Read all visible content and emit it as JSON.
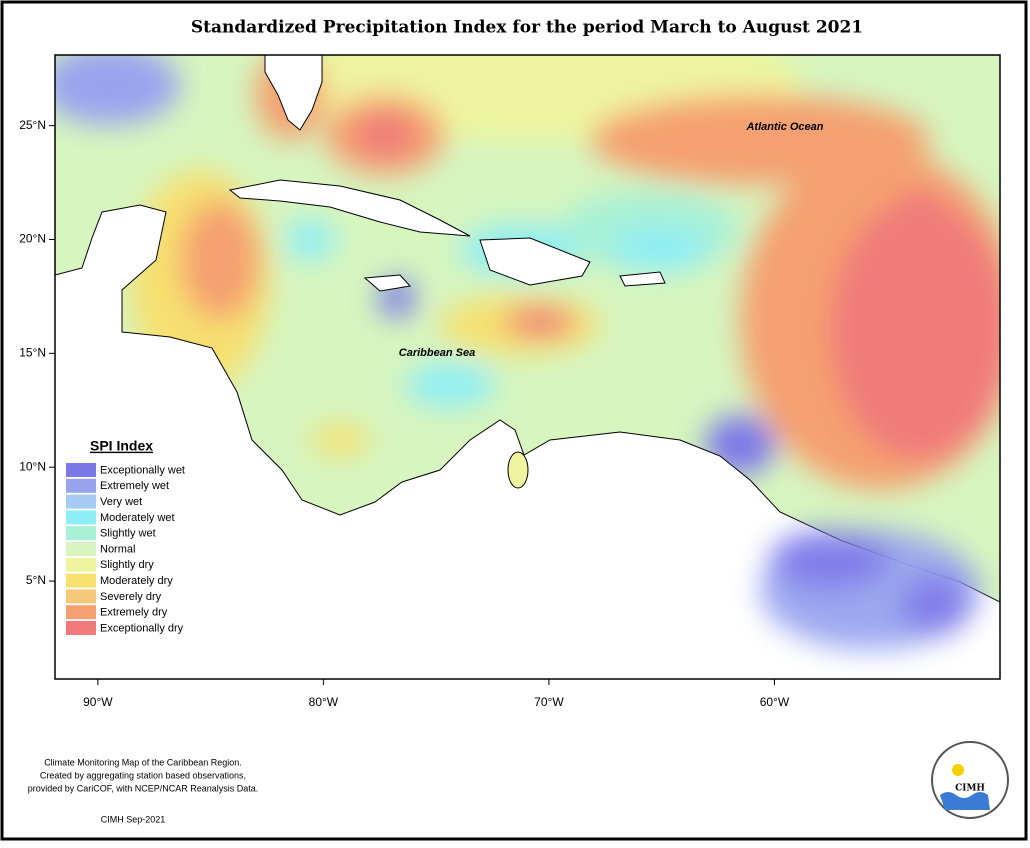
{
  "title": "Standardized Precipitation Index for the period March to August 2021",
  "map": {
    "xlim": [
      -91.9,
      -50
    ],
    "ylim": [
      0.7,
      28.1
    ],
    "xticks": [
      {
        "value": -90,
        "label": "90°W"
      },
      {
        "value": -80,
        "label": "80°W"
      },
      {
        "value": -70,
        "label": "70°W"
      },
      {
        "value": -60,
        "label": "60°W"
      }
    ],
    "yticks": [
      {
        "value": 5,
        "label": "5°N"
      },
      {
        "value": 10,
        "label": "10°N"
      },
      {
        "value": 15,
        "label": "15°N"
      },
      {
        "value": 20,
        "label": "20°N"
      },
      {
        "value": 25,
        "label": "25°N"
      }
    ],
    "labels": [
      "Atlantic Ocean",
      "Caribbean Sea"
    ]
  },
  "legend": {
    "title": "SPI Index",
    "items": [
      {
        "label": "Exceptionally wet",
        "color": "#7b78e8"
      },
      {
        "label": "Extremely wet",
        "color": "#98a4ef"
      },
      {
        "label": "Very wet",
        "color": "#a6cbf4"
      },
      {
        "label": "Moderately wet",
        "color": "#8eeef6"
      },
      {
        "label": "Slightly wet",
        "color": "#a8f0d6"
      },
      {
        "label": "Normal",
        "color": "#d6f5bf"
      },
      {
        "label": "Slightly dry",
        "color": "#eef59e"
      },
      {
        "label": "Moderately dry",
        "color": "#f6e070"
      },
      {
        "label": "Severely dry",
        "color": "#f6c87a"
      },
      {
        "label": "Extremely dry",
        "color": "#f5a070"
      },
      {
        "label": "Exceptionally dry",
        "color": "#f07a7a"
      }
    ]
  },
  "footer": {
    "lines": [
      "Climate Monitoring Map of the Caribbean Region.",
      "Created by aggregating station based observations,",
      "provided by CariCOF, with NCEP/NCAR Reanalysis Data."
    ],
    "date": "CIMH Sep-2021"
  },
  "logo": {
    "text": "CIMH"
  }
}
